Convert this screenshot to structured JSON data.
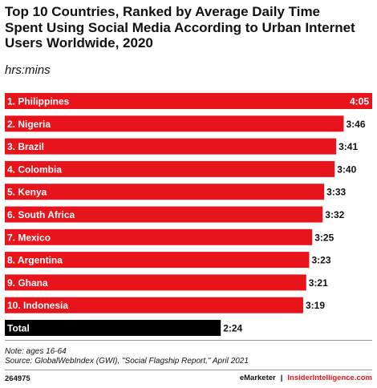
{
  "title": "Top 10 Countries, Ranked by Average Daily Time Spent Using Social Media According to Urban Internet Users Worldwide, 2020",
  "subtitle": "hrs:mins",
  "notes": {
    "line1": "Note: ages 16-64",
    "line2": "Source: GlobalWebIndex (GWI), \"Social Flagship Report,\" April 2021"
  },
  "footer": {
    "chart_id": "264975",
    "brand1": "eMarketer",
    "separator": "|",
    "brand2": "InsiderIntelligence.com"
  },
  "colors": {
    "bar": "#e8141c",
    "total_bar": "#000000"
  },
  "chart_data": {
    "type": "bar",
    "orientation": "horizontal",
    "categories": [
      "1. Philippines",
      "2. Nigeria",
      "3. Brazil",
      "4. Colombia",
      "5. Kenya",
      "6. South Africa",
      "7. Mexico",
      "8. Argentina",
      "9. Ghana",
      "10. Indonesia",
      "Total"
    ],
    "value_labels": [
      "4:05",
      "3:46",
      "3:41",
      "3:40",
      "3:33",
      "3:32",
      "3:25",
      "3:23",
      "3:21",
      "3:19",
      "2:24"
    ],
    "values_minutes": [
      245,
      226,
      221,
      220,
      213,
      212,
      205,
      203,
      201,
      199,
      144
    ],
    "highlight_last": true,
    "xlim": [
      0,
      245
    ],
    "grid": false,
    "legend": "none"
  }
}
